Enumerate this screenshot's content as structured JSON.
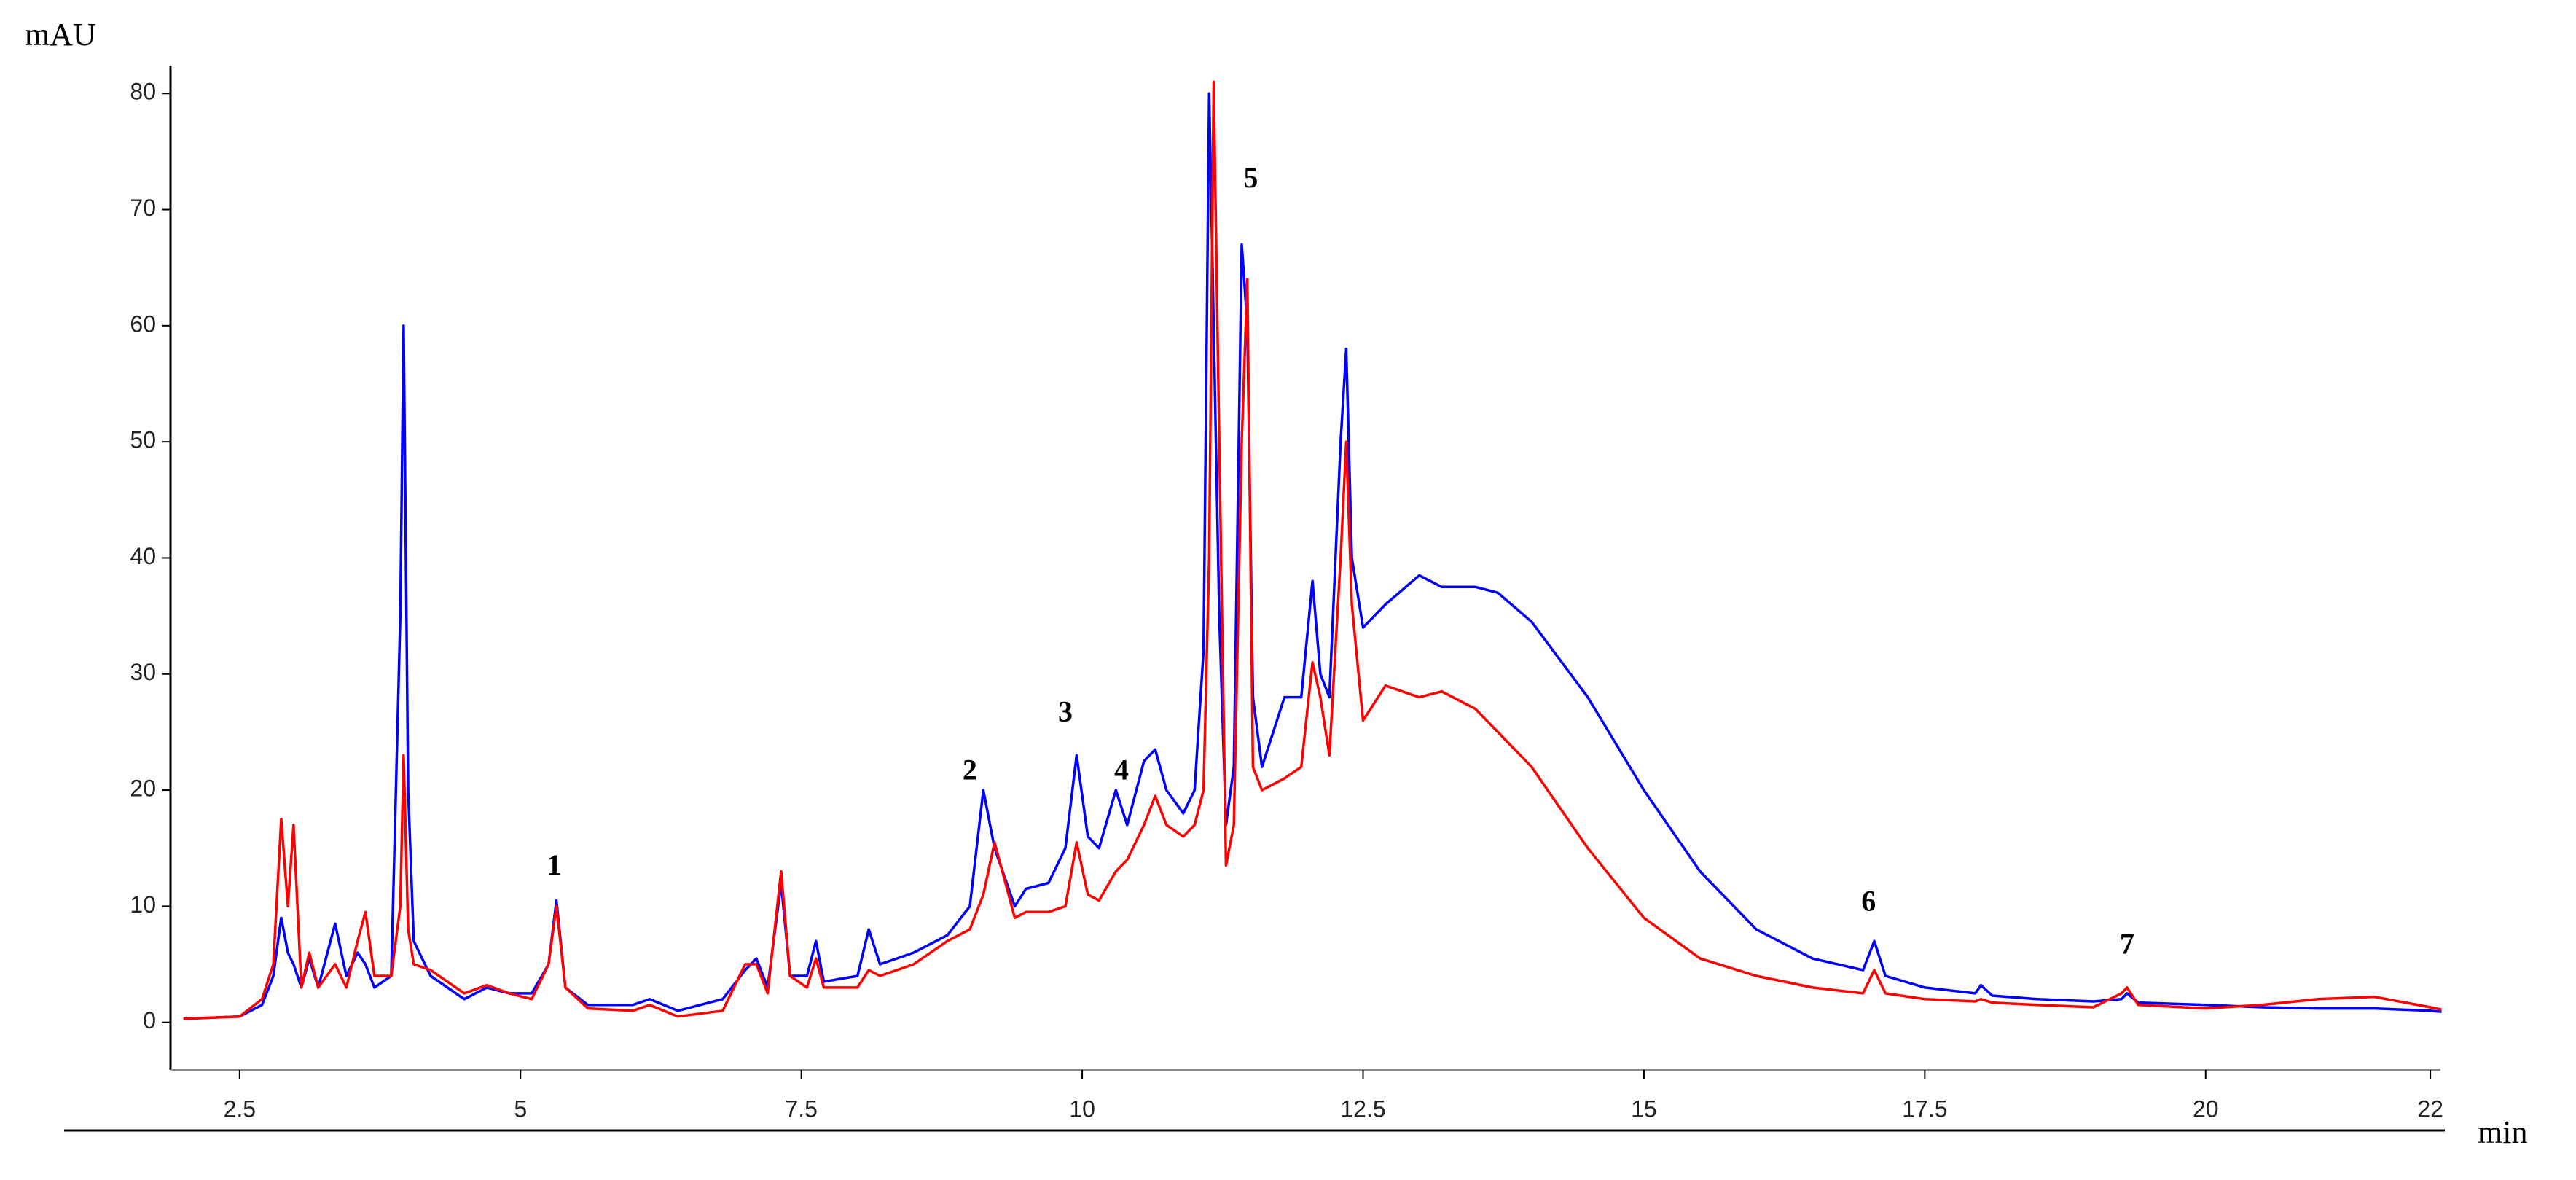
{
  "chart_data": {
    "type": "line",
    "y_label": "mAU",
    "x_label": "min",
    "x": [
      2.0,
      2.5,
      2.7,
      2.8,
      2.87,
      2.93,
      2.98,
      3.05,
      3.12,
      3.2,
      3.35,
      3.45,
      3.55,
      3.62,
      3.7,
      3.85,
      3.93,
      3.96,
      4.0,
      4.05,
      4.2,
      4.5,
      4.7,
      4.9,
      5.1,
      5.25,
      5.32,
      5.4,
      5.6,
      6.0,
      6.15,
      6.4,
      6.8,
      7.0,
      7.1,
      7.2,
      7.32,
      7.4,
      7.55,
      7.63,
      7.7,
      8.0,
      8.1,
      8.2,
      8.5,
      8.8,
      9.0,
      9.12,
      9.22,
      9.4,
      9.5,
      9.7,
      9.85,
      9.95,
      10.05,
      10.15,
      10.3,
      10.4,
      10.55,
      10.65,
      10.75,
      10.9,
      11.0,
      11.08,
      11.13,
      11.17,
      11.22,
      11.28,
      11.35,
      11.42,
      11.47,
      11.52,
      11.6,
      11.8,
      11.95,
      12.05,
      12.12,
      12.2,
      12.3,
      12.35,
      12.4,
      12.5,
      12.7,
      13.0,
      13.2,
      13.5,
      13.7,
      14.0,
      14.5,
      15.0,
      15.5,
      16.0,
      16.5,
      16.95,
      17.05,
      17.15,
      17.5,
      17.95,
      18.0,
      18.1,
      18.5,
      19.0,
      19.25,
      19.3,
      19.4,
      20.0,
      20.5,
      21.0,
      21.5,
      22.0,
      22.1
    ],
    "series": [
      {
        "color": "#0000ff",
        "values": [
          0.3,
          0.5,
          1.5,
          4,
          9,
          6,
          5,
          3,
          5.5,
          3,
          8.5,
          4,
          6,
          5,
          3,
          4,
          35,
          60,
          20,
          7,
          4,
          2,
          3,
          2.5,
          2.5,
          5,
          10.5,
          3,
          1.5,
          1.5,
          2,
          1,
          2,
          4.5,
          5.5,
          3,
          12,
          4,
          4,
          7,
          3.5,
          4,
          8,
          5,
          6,
          7.5,
          10,
          20,
          15,
          10,
          11.5,
          12,
          15,
          23,
          16,
          15,
          20,
          17,
          22.5,
          23.5,
          20,
          18,
          20,
          32,
          80,
          60,
          35,
          17,
          22,
          67,
          60,
          28,
          22,
          28,
          28,
          38,
          30,
          28,
          50,
          58,
          40,
          34,
          36,
          38.5,
          37.5,
          37.5,
          37,
          34.5,
          28,
          20,
          13,
          8,
          5.5,
          4.5,
          7,
          4,
          3,
          2.5,
          3.2,
          2.3,
          2,
          1.8,
          2,
          2.5,
          1.7,
          1.5,
          1.3,
          1.2,
          1.2,
          1,
          0.9
        ]
      },
      {
        "color": "#ff0000",
        "values": [
          0.3,
          0.5,
          2,
          5,
          17.5,
          10,
          17,
          3,
          6,
          3,
          5,
          3,
          7,
          9.5,
          4,
          4,
          10,
          23,
          8,
          5,
          4.5,
          2.5,
          3.2,
          2.5,
          2,
          5,
          10,
          3,
          1.2,
          1,
          1.5,
          0.5,
          1,
          5,
          5,
          2.5,
          13,
          4,
          3,
          5.5,
          3,
          3,
          4.5,
          4,
          5,
          7,
          8,
          11,
          15.5,
          9,
          9.5,
          9.5,
          10,
          15.5,
          11,
          10.5,
          13,
          14,
          17,
          19.5,
          17,
          16,
          17,
          20,
          40,
          81,
          50,
          13.5,
          17,
          50,
          64,
          22,
          20,
          21,
          22,
          31,
          28,
          23,
          40,
          50,
          36,
          26,
          29,
          28,
          28.5,
          27,
          25,
          22,
          15,
          9,
          5.5,
          4,
          3,
          2.5,
          4.5,
          2.5,
          2,
          1.8,
          2,
          1.7,
          1.5,
          1.3,
          2.5,
          3,
          1.5,
          1.2,
          1.5,
          2,
          2.2,
          1.3,
          1.1
        ]
      }
    ],
    "annotations": [
      {
        "text": "1",
        "x": 5.3,
        "y": 13.3
      },
      {
        "text": "2",
        "x": 9.0,
        "y": 21.5
      },
      {
        "text": "3",
        "x": 9.85,
        "y": 26.5
      },
      {
        "text": "4",
        "x": 10.35,
        "y": 21.5
      },
      {
        "text": "5",
        "x": 11.5,
        "y": 72.5
      },
      {
        "text": "6",
        "x": 17.0,
        "y": 10.2
      },
      {
        "text": "7",
        "x": 19.3,
        "y": 6.5
      }
    ],
    "xlim": [
      1.885,
      22.09
    ],
    "ylim": [
      -4.1,
      82.4
    ],
    "xticks": [
      2.5,
      5,
      7.5,
      10,
      12.5,
      15,
      17.5,
      20,
      22
    ],
    "yticks": [
      0,
      10,
      20,
      30,
      40,
      50,
      60,
      70,
      80
    ]
  }
}
